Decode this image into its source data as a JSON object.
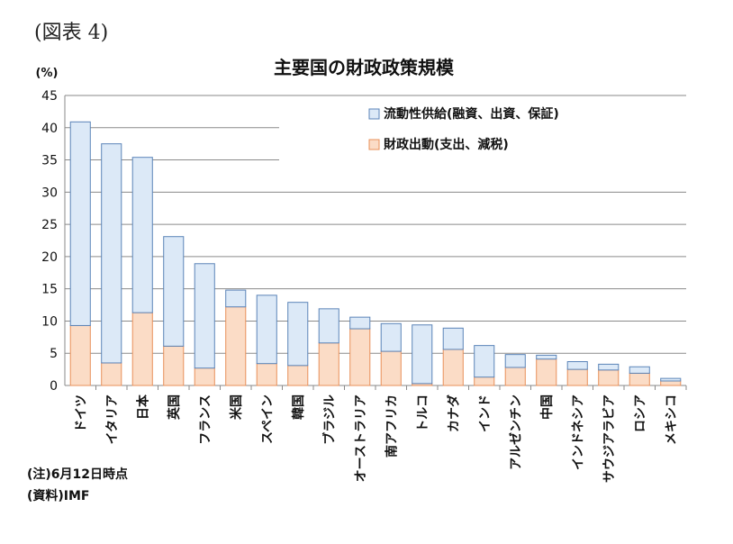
{
  "figure_label": "(図表 4)",
  "notes": {
    "note": "(注)6月12日時点",
    "source": "(資料)IMF"
  },
  "colors": {
    "liquidity": "#dce9f7",
    "liquidity_stroke": "#5b84b8",
    "fiscal": "#fbdcc6",
    "fiscal_stroke": "#e8905a",
    "grid": "#8a8a8a"
  },
  "chart_data": {
    "type": "bar",
    "stacked": true,
    "title": "主要国の財政政策規模",
    "ylabel": "(%)",
    "ylim": [
      0,
      45
    ],
    "yticks": [
      0,
      5,
      10,
      15,
      20,
      25,
      30,
      35,
      40,
      45
    ],
    "grid": true,
    "legend_position": "top-right",
    "categories": [
      "ドイツ",
      "イタリア",
      "日本",
      "英国",
      "フランス",
      "米国",
      "スペイン",
      "韓国",
      "ブラジル",
      "オーストラリア",
      "南アフリカ",
      "トルコ",
      "カナダ",
      "インド",
      "アルゼンチン",
      "中国",
      "インドネシア",
      "サウジアラビア",
      "ロシア",
      "メキシコ"
    ],
    "series": [
      {
        "name": "財政出動(支出、減税)",
        "values": [
          9.3,
          3.5,
          11.3,
          6.1,
          2.7,
          12.2,
          3.4,
          3.1,
          6.6,
          8.8,
          5.3,
          0.3,
          5.6,
          1.3,
          2.8,
          4.1,
          2.5,
          2.4,
          1.9,
          0.7
        ]
      },
      {
        "name": "流動性供給(融資、出資、保証)",
        "values": [
          31.6,
          34.0,
          24.1,
          17.0,
          16.2,
          2.6,
          10.6,
          9.8,
          5.3,
          1.8,
          4.3,
          9.1,
          3.3,
          4.9,
          2.0,
          0.6,
          1.2,
          0.9,
          1.0,
          0.4
        ]
      }
    ]
  }
}
